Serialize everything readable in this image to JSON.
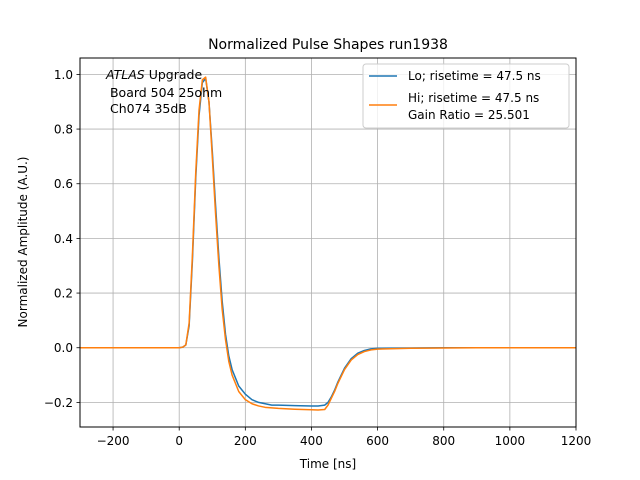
{
  "chart_data": {
    "type": "line",
    "title": "Normalized Pulse Shapes run1938",
    "xlabel": "Time [ns]",
    "ylabel": "Normalized Amplitude (A.U.)",
    "xlim": [
      -300,
      1200
    ],
    "ylim": [
      -0.29,
      1.06
    ],
    "xticks": [
      -200,
      0,
      200,
      400,
      600,
      800,
      1000,
      1200
    ],
    "xtick_labels": [
      "−200",
      "0",
      "200",
      "400",
      "600",
      "800",
      "1000",
      "1200"
    ],
    "yticks": [
      -0.2,
      0.0,
      0.2,
      0.4,
      0.6,
      0.8,
      1.0
    ],
    "ytick_labels": [
      "−0.2",
      "0.0",
      "0.2",
      "0.4",
      "0.6",
      "0.8",
      "1.0"
    ],
    "grid": true,
    "legend_position": "upper right",
    "annotation": {
      "italic_part": "ATLAS",
      "line1_rest": " Upgrade",
      "line2": " Board 504 25ohm",
      "line3": " Ch074 35dB"
    },
    "series": [
      {
        "name": "Lo; risetime = 47.5 ns",
        "color": "#1f77b4",
        "x": [
          -300,
          -200,
          -100,
          0,
          10,
          20,
          30,
          40,
          50,
          60,
          70,
          80,
          90,
          100,
          110,
          120,
          130,
          140,
          150,
          160,
          170,
          180,
          200,
          220,
          240,
          260,
          280,
          300,
          350,
          400,
          420,
          440,
          450,
          460,
          470,
          480,
          500,
          520,
          540,
          560,
          580,
          600,
          700,
          800,
          900,
          1000,
          1100,
          1200
        ],
        "y": [
          0.0,
          0.0,
          0.0,
          0.0,
          0.002,
          0.01,
          0.08,
          0.32,
          0.62,
          0.85,
          0.97,
          0.985,
          0.9,
          0.72,
          0.52,
          0.33,
          0.17,
          0.05,
          -0.03,
          -0.08,
          -0.11,
          -0.14,
          -0.17,
          -0.19,
          -0.2,
          -0.205,
          -0.21,
          -0.21,
          -0.212,
          -0.213,
          -0.213,
          -0.21,
          -0.2,
          -0.18,
          -0.155,
          -0.125,
          -0.075,
          -0.04,
          -0.02,
          -0.01,
          -0.004,
          -0.002,
          -0.001,
          0.0,
          0.0,
          0.0,
          0.0,
          0.0
        ]
      },
      {
        "name": "Hi; risetime = 47.5 ns\n Gain Ratio = 25.501",
        "color": "#ff7f0e",
        "x": [
          -300,
          -200,
          -100,
          0,
          10,
          20,
          30,
          40,
          50,
          60,
          70,
          80,
          90,
          100,
          110,
          120,
          130,
          140,
          150,
          160,
          170,
          180,
          200,
          220,
          240,
          260,
          280,
          300,
          350,
          400,
          420,
          440,
          450,
          460,
          470,
          480,
          500,
          520,
          540,
          560,
          580,
          600,
          700,
          800,
          900,
          1000,
          1100,
          1200
        ],
        "y": [
          0.0,
          0.0,
          0.0,
          0.0,
          0.002,
          0.01,
          0.09,
          0.34,
          0.64,
          0.87,
          0.98,
          0.99,
          0.9,
          0.7,
          0.49,
          0.3,
          0.14,
          0.03,
          -0.05,
          -0.1,
          -0.13,
          -0.16,
          -0.19,
          -0.205,
          -0.213,
          -0.218,
          -0.22,
          -0.222,
          -0.225,
          -0.227,
          -0.228,
          -0.226,
          -0.21,
          -0.185,
          -0.16,
          -0.13,
          -0.08,
          -0.045,
          -0.025,
          -0.014,
          -0.008,
          -0.005,
          -0.002,
          -0.001,
          0.0,
          0.0,
          0.0,
          0.0
        ]
      }
    ]
  }
}
